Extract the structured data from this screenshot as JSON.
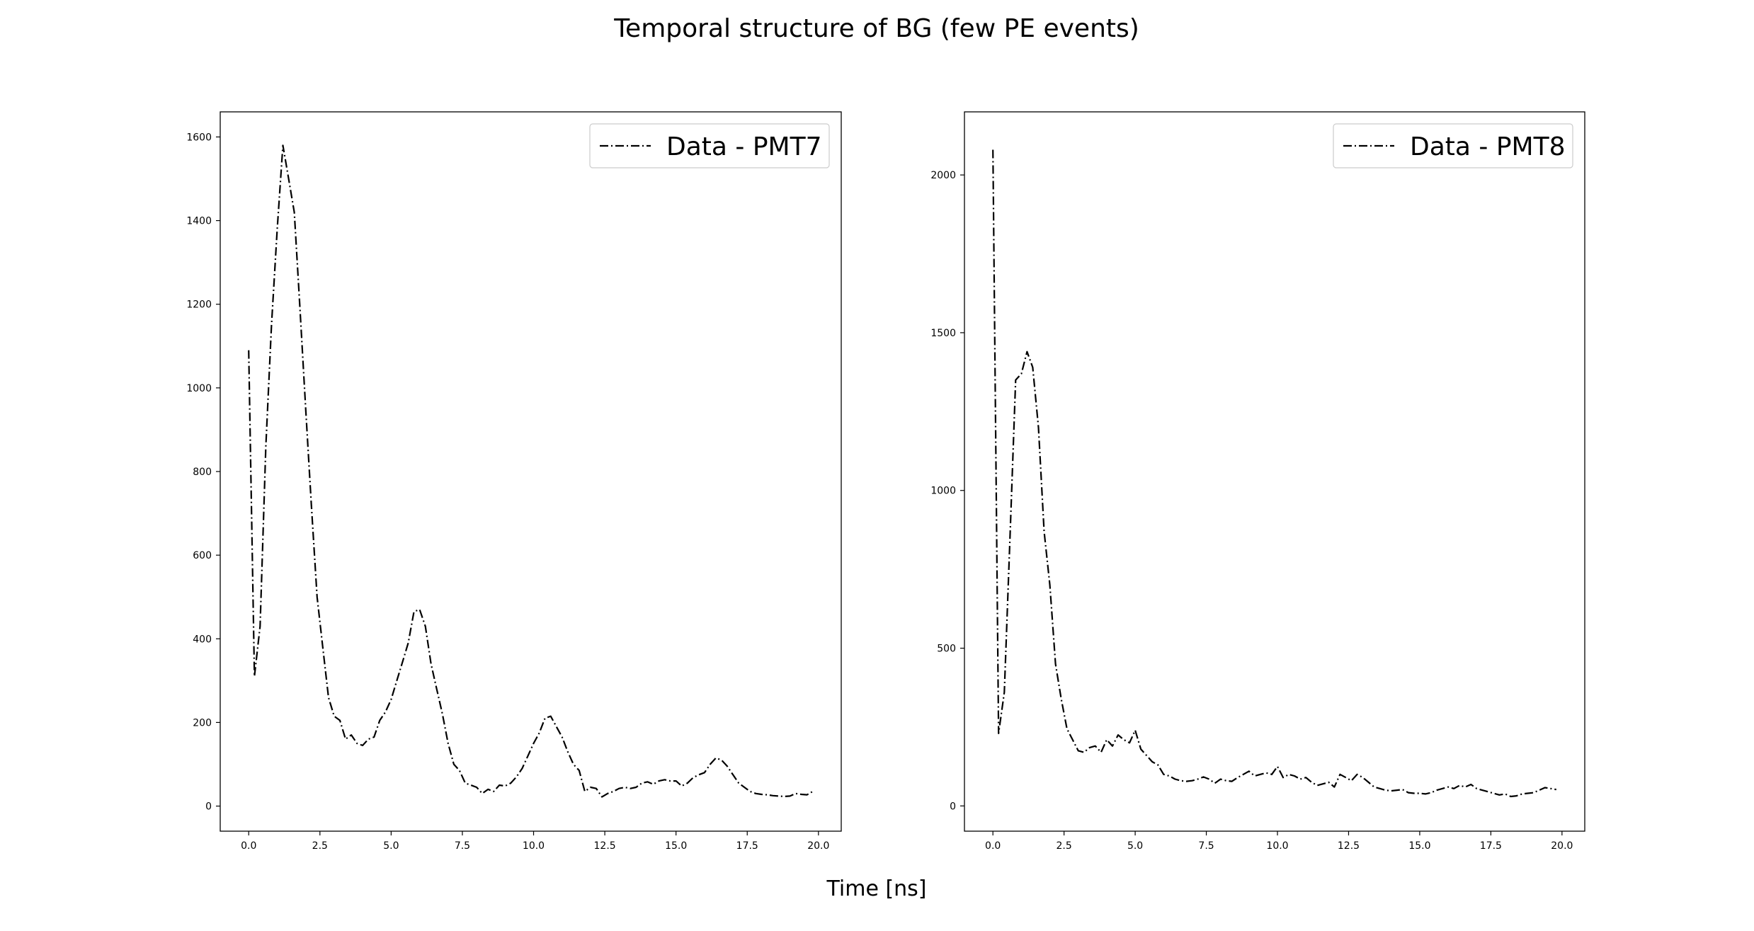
{
  "figure": {
    "title": "Temporal structure of BG (few PE events)",
    "xlabel": "Time [ns]"
  },
  "style": {
    "line_color": "#000000",
    "background": "#ffffff"
  },
  "chart_data": [
    {
      "type": "line",
      "legend_position": "top-right",
      "grid": false,
      "line_style": "dash-dot",
      "xlim": [
        -1.0,
        20.8
      ],
      "ylim": [
        -60,
        1660
      ],
      "xticks": [
        0.0,
        2.5,
        5.0,
        7.5,
        10.0,
        12.5,
        15.0,
        17.5,
        20.0
      ],
      "xtick_labels": [
        "0.0",
        "2.5",
        "5.0",
        "7.5",
        "10.0",
        "12.5",
        "15.0",
        "17.5",
        "20.0"
      ],
      "yticks": [
        0,
        200,
        400,
        600,
        800,
        1000,
        1200,
        1400,
        1600
      ],
      "ytick_labels": [
        "0",
        "200",
        "400",
        "600",
        "800",
        "1000",
        "1200",
        "1400",
        "1600"
      ],
      "series": [
        {
          "name": "Data - PMT7",
          "x": [
            0.0,
            0.2,
            0.4,
            0.6,
            0.8,
            1.0,
            1.2,
            1.4,
            1.6,
            1.8,
            2.0,
            2.2,
            2.4,
            2.6,
            2.8,
            3.0,
            3.2,
            3.4,
            3.6,
            3.8,
            4.0,
            4.2,
            4.4,
            4.6,
            4.8,
            5.0,
            5.2,
            5.4,
            5.6,
            5.8,
            6.0,
            6.2,
            6.4,
            6.6,
            6.8,
            7.0,
            7.2,
            7.4,
            7.6,
            7.8,
            8.0,
            8.2,
            8.4,
            8.6,
            8.8,
            9.0,
            9.2,
            9.4,
            9.6,
            9.8,
            10.0,
            10.2,
            10.4,
            10.6,
            10.8,
            11.0,
            11.2,
            11.4,
            11.6,
            11.8,
            12.0,
            12.2,
            12.4,
            12.6,
            12.8,
            13.0,
            13.2,
            13.4,
            13.6,
            13.8,
            14.0,
            14.2,
            14.4,
            14.6,
            14.8,
            15.0,
            15.2,
            15.4,
            15.6,
            15.8,
            16.0,
            16.2,
            16.4,
            16.6,
            16.8,
            17.0,
            17.2,
            17.4,
            17.6,
            17.8,
            18.0,
            18.2,
            18.4,
            18.6,
            18.8,
            19.0,
            19.2,
            19.4,
            19.6,
            19.8
          ],
          "y": [
            1090,
            310,
            430,
            860,
            1150,
            1380,
            1580,
            1500,
            1420,
            1190,
            950,
            720,
            500,
            380,
            260,
            215,
            205,
            160,
            170,
            150,
            145,
            160,
            165,
            205,
            225,
            255,
            300,
            345,
            390,
            465,
            470,
            430,
            340,
            280,
            220,
            150,
            100,
            85,
            55,
            50,
            45,
            30,
            40,
            35,
            50,
            48,
            55,
            70,
            90,
            120,
            150,
            175,
            210,
            215,
            190,
            165,
            130,
            100,
            85,
            35,
            45,
            42,
            22,
            30,
            35,
            42,
            45,
            42,
            45,
            55,
            58,
            52,
            60,
            63,
            60,
            60,
            48,
            55,
            68,
            75,
            80,
            100,
            115,
            110,
            95,
            75,
            55,
            45,
            35,
            30,
            28,
            27,
            25,
            24,
            23,
            24,
            30,
            28,
            27,
            35
          ]
        }
      ]
    },
    {
      "type": "line",
      "legend_position": "top-right",
      "grid": false,
      "line_style": "dash-dot",
      "xlim": [
        -1.0,
        20.8
      ],
      "ylim": [
        -80,
        2200
      ],
      "xticks": [
        0.0,
        2.5,
        5.0,
        7.5,
        10.0,
        12.5,
        15.0,
        17.5,
        20.0
      ],
      "xtick_labels": [
        "0.0",
        "2.5",
        "5.0",
        "7.5",
        "10.0",
        "12.5",
        "15.0",
        "17.5",
        "20.0"
      ],
      "yticks": [
        0,
        500,
        1000,
        1500,
        2000
      ],
      "ytick_labels": [
        "0",
        "500",
        "1000",
        "1500",
        "2000"
      ],
      "series": [
        {
          "name": "Data - PMT8",
          "x": [
            0.0,
            0.2,
            0.4,
            0.6,
            0.8,
            1.0,
            1.2,
            1.4,
            1.6,
            1.8,
            2.0,
            2.2,
            2.4,
            2.6,
            2.8,
            3.0,
            3.2,
            3.4,
            3.6,
            3.8,
            4.0,
            4.2,
            4.4,
            4.6,
            4.8,
            5.0,
            5.2,
            5.4,
            5.6,
            5.8,
            6.0,
            6.2,
            6.4,
            6.6,
            6.8,
            7.0,
            7.2,
            7.4,
            7.6,
            7.8,
            8.0,
            8.2,
            8.4,
            8.6,
            8.8,
            9.0,
            9.2,
            9.4,
            9.6,
            9.8,
            10.0,
            10.2,
            10.4,
            10.6,
            10.8,
            11.0,
            11.2,
            11.4,
            11.6,
            11.8,
            12.0,
            12.2,
            12.4,
            12.6,
            12.8,
            13.0,
            13.2,
            13.4,
            13.6,
            13.8,
            14.0,
            14.2,
            14.4,
            14.6,
            14.8,
            15.0,
            15.2,
            15.4,
            15.6,
            15.8,
            16.0,
            16.2,
            16.4,
            16.6,
            16.8,
            17.0,
            17.2,
            17.4,
            17.6,
            17.8,
            18.0,
            18.2,
            18.4,
            18.6,
            18.8,
            19.0,
            19.2,
            19.4,
            19.6,
            19.8
          ],
          "y": [
            2080,
            230,
            360,
            850,
            1350,
            1370,
            1440,
            1390,
            1200,
            870,
            700,
            450,
            340,
            245,
            210,
            175,
            170,
            185,
            190,
            170,
            210,
            190,
            225,
            210,
            200,
            240,
            180,
            160,
            140,
            130,
            100,
            95,
            85,
            80,
            78,
            80,
            85,
            92,
            85,
            72,
            85,
            80,
            78,
            90,
            100,
            110,
            95,
            100,
            105,
            100,
            125,
            90,
            100,
            95,
            85,
            90,
            75,
            65,
            70,
            75,
            60,
            100,
            90,
            80,
            100,
            90,
            75,
            60,
            55,
            50,
            48,
            50,
            52,
            42,
            40,
            40,
            38,
            42,
            50,
            55,
            60,
            55,
            65,
            60,
            68,
            55,
            50,
            45,
            40,
            35,
            38,
            30,
            32,
            38,
            40,
            42,
            50,
            58,
            55,
            52
          ]
        }
      ]
    }
  ]
}
